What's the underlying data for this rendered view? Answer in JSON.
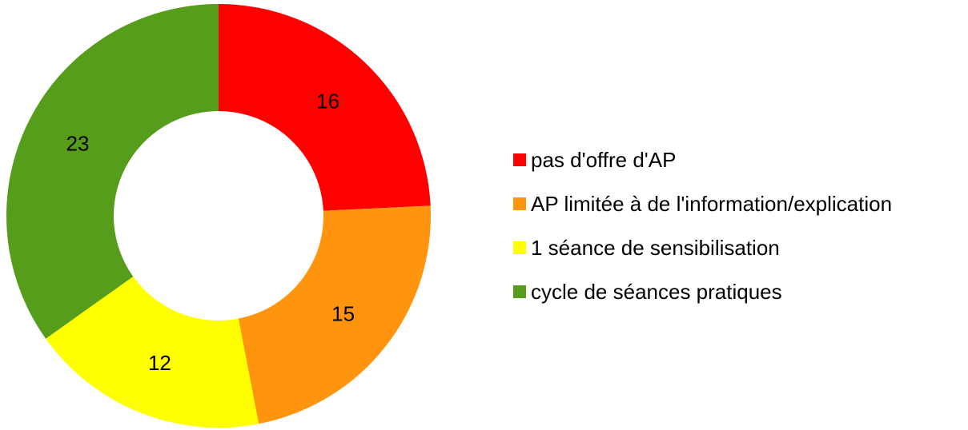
{
  "chart_data": {
    "type": "pie",
    "categories": [
      "pas d'offre d'AP",
      "AP limitée à de l'information/explication",
      "1 séance de sensibilisation",
      "cycle de séances pratiques"
    ],
    "values": [
      16,
      15,
      12,
      23
    ],
    "colors": [
      "#ff0000",
      "#ff950e",
      "#ffff00",
      "#579d1c"
    ],
    "donut": true,
    "legend": "right"
  }
}
